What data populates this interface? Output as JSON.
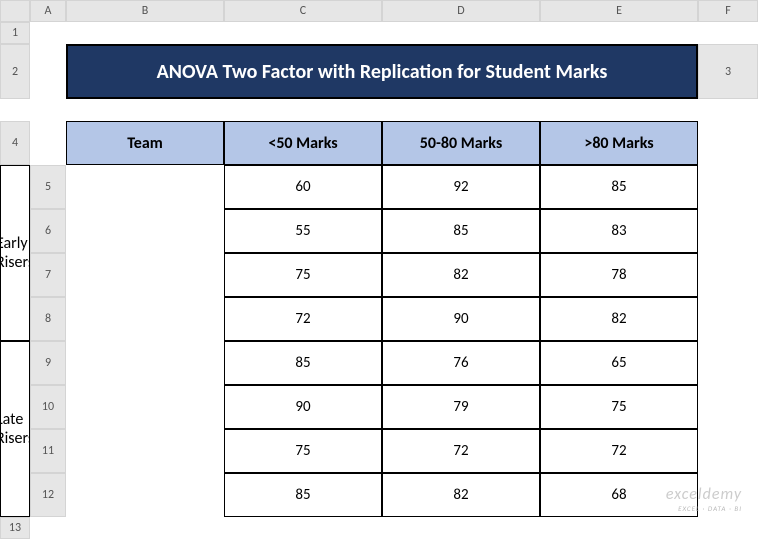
{
  "columns": [
    "A",
    "B",
    "C",
    "D",
    "E",
    "F"
  ],
  "rows": [
    "1",
    "2",
    "3",
    "4",
    "5",
    "6",
    "7",
    "8",
    "9",
    "10",
    "11",
    "12",
    "13"
  ],
  "title": "ANOVA Two Factor with Replication for Student Marks",
  "headers": {
    "team": "Team",
    "col1": "<50 Marks",
    "col2": "50-80 Marks",
    "col3": ">80 Marks"
  },
  "teams": {
    "t1": "Early Risers",
    "t2": "Late Risers"
  },
  "data": {
    "r1": {
      "c1": "60",
      "c2": "92",
      "c3": "85"
    },
    "r2": {
      "c1": "55",
      "c2": "85",
      "c3": "83"
    },
    "r3": {
      "c1": "75",
      "c2": "82",
      "c3": "78"
    },
    "r4": {
      "c1": "72",
      "c2": "90",
      "c3": "82"
    },
    "r5": {
      "c1": "85",
      "c2": "76",
      "c3": "65"
    },
    "r6": {
      "c1": "90",
      "c2": "79",
      "c3": "75"
    },
    "r7": {
      "c1": "75",
      "c2": "72",
      "c3": "72"
    },
    "r8": {
      "c1": "85",
      "c2": "82",
      "c3": "68"
    }
  },
  "watermark": {
    "brand": "exceldemy",
    "tag": "EXCEL · DATA · BI"
  },
  "colors": {
    "title_bg": "#1f3864",
    "title_fg": "#ffffff",
    "header_bg": "#b4c6e7",
    "border": "#000000",
    "grid_header_bg": "#e6e6e6"
  }
}
